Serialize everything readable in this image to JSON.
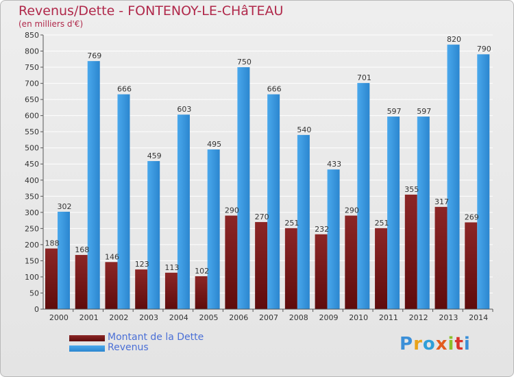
{
  "title": "Revenus/Dette - FONTENOY-LE-CHâTEAU",
  "subtitle": "(en milliers d'€)",
  "logo": {
    "text": "Proxiti",
    "colors": [
      "#3a8fd8",
      "#e8a21a",
      "#2f9fd8",
      "#e35b1d",
      "#8bbf2a",
      "#d9342b",
      "#3a8fd8"
    ]
  },
  "colors": {
    "dette": "#7a1818",
    "revenus": "#3c9ee6"
  },
  "chart_data": {
    "type": "bar",
    "categories": [
      "2000",
      "2001",
      "2002",
      "2003",
      "2004",
      "2005",
      "2006",
      "2007",
      "2008",
      "2009",
      "2010",
      "2011",
      "2012",
      "2013",
      "2014"
    ],
    "series": [
      {
        "name": "Montant de la Dette",
        "values": [
          188,
          168,
          146,
          123,
          113,
          102,
          290,
          270,
          251,
          232,
          290,
          251,
          355,
          317,
          269
        ]
      },
      {
        "name": "Revenus",
        "values": [
          302,
          769,
          666,
          459,
          603,
          495,
          750,
          666,
          540,
          433,
          701,
          597,
          597,
          820,
          790
        ]
      }
    ],
    "ylim": [
      0,
      850
    ],
    "yticks": [
      0,
      50,
      100,
      150,
      200,
      250,
      300,
      350,
      400,
      450,
      500,
      550,
      600,
      650,
      700,
      750,
      800,
      850
    ],
    "grid": true,
    "legend": "bottom-left"
  }
}
